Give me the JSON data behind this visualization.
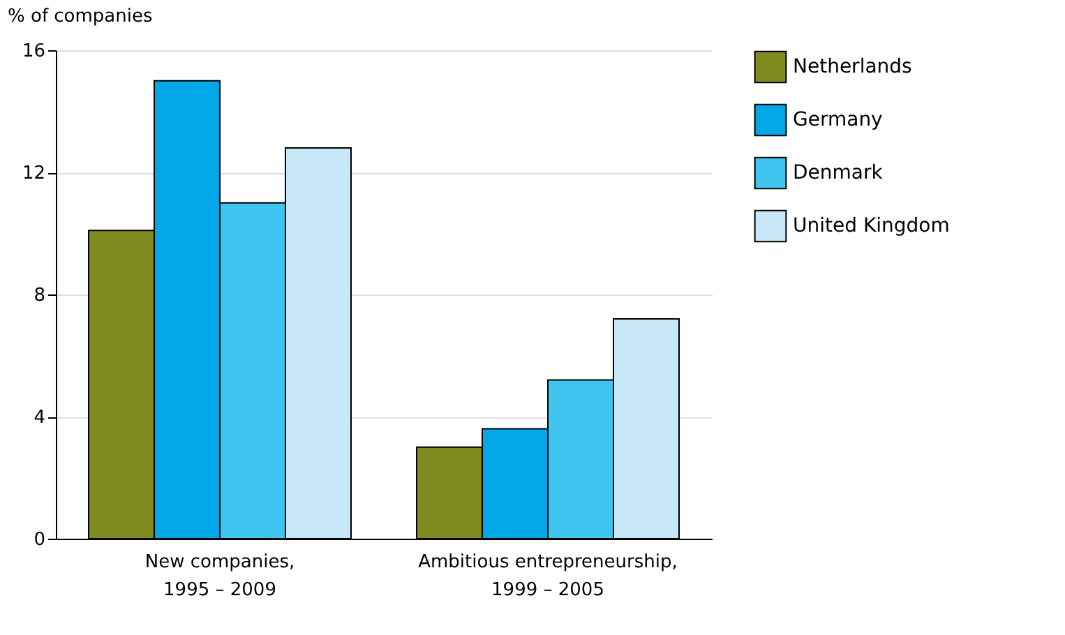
{
  "chart_data": {
    "type": "bar",
    "ylabel": "% of companies",
    "categories": [
      "New companies,\n1995 – 2009",
      "Ambitious entrepreneurship,\n1999 – 2005"
    ],
    "series": [
      {
        "name": "Netherlands",
        "color": "#808b1f",
        "values": [
          10.1,
          3.0
        ]
      },
      {
        "name": "Germany",
        "color": "#00a8e8",
        "values": [
          15.0,
          3.6
        ]
      },
      {
        "name": "Denmark",
        "color": "#40c4f0",
        "values": [
          11.0,
          5.2
        ]
      },
      {
        "name": "United Kingdom",
        "color": "#c8e8f8",
        "values": [
          12.8,
          7.2
        ]
      }
    ],
    "ylim": [
      0,
      16
    ],
    "yticks": [
      0,
      4,
      8,
      12,
      16
    ],
    "grid": "y",
    "legend": "top right"
  }
}
